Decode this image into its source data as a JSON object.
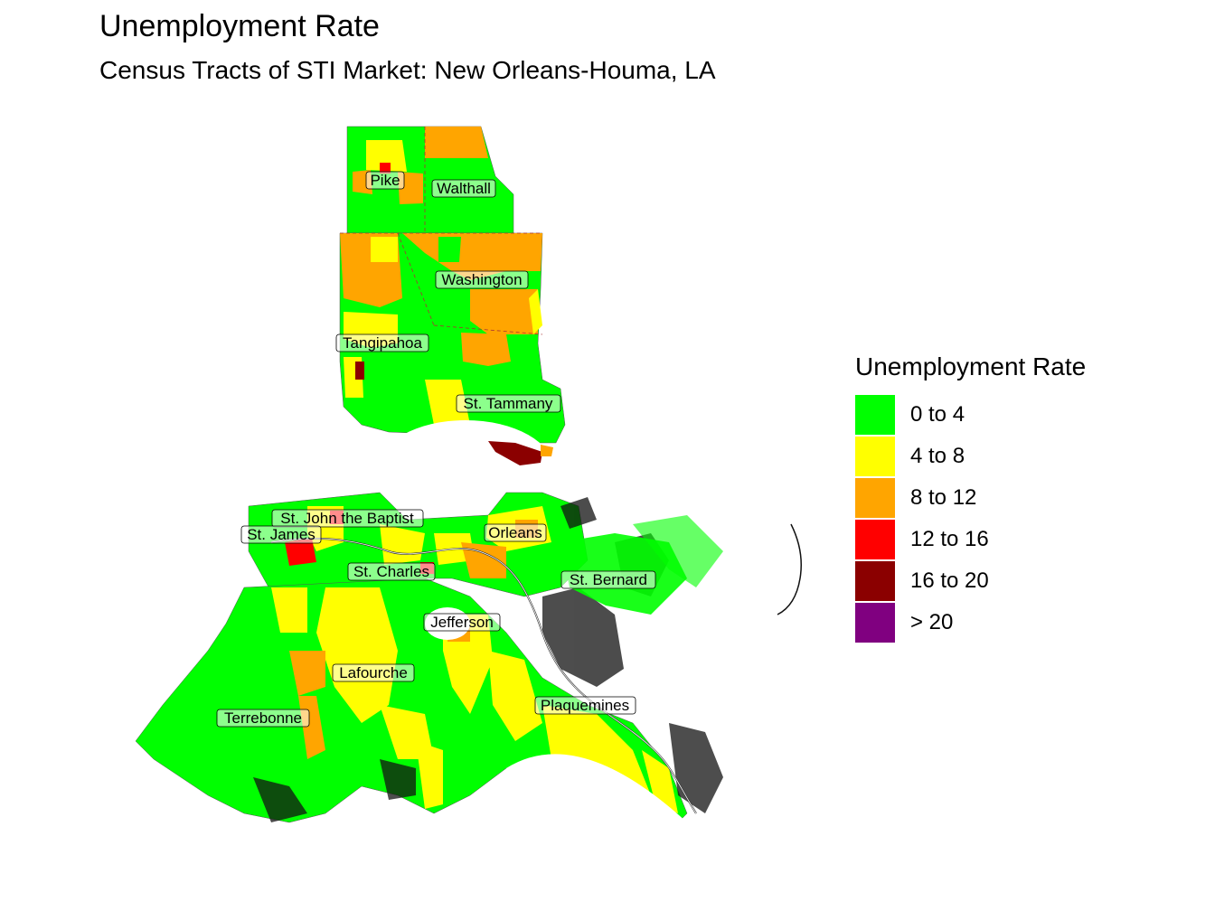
{
  "title": "Unemployment Rate",
  "subtitle": "Census Tracts of STI Market: New Orleans-Houma, LA",
  "legend": {
    "title": "Unemployment Rate",
    "items": [
      {
        "label": "0 to 4",
        "color": "#00FF00"
      },
      {
        "label": "4 to 8",
        "color": "#FFFF00"
      },
      {
        "label": "8 to 12",
        "color": "#FFA500"
      },
      {
        "label": "12 to 16",
        "color": "#FF0000"
      },
      {
        "label": "16 to 20",
        "color": "#8B0000"
      },
      {
        "label": "> 20",
        "color": "#800080"
      }
    ]
  },
  "counties": {
    "pike": "Pike",
    "walthall": "Walthall",
    "washington": "Washington",
    "tangipahoa": "Tangipahoa",
    "st_tammany": "St. Tammany",
    "st_john": "St. John the Baptist",
    "st_james": "St. James",
    "orleans": "Orleans",
    "st_charles": "St. Charles",
    "st_bernard": "St. Bernard",
    "jefferson": "Jefferson",
    "lafourche": "Lafourche",
    "plaquemines": "Plaquemines",
    "terrebonne": "Terrebonne"
  }
}
